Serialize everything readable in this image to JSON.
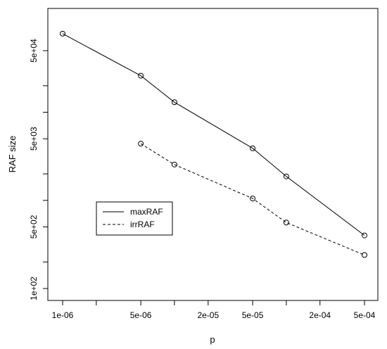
{
  "chart_data": {
    "type": "line",
    "xlabel": "p",
    "ylabel": "RAF size",
    "x_scale": "log",
    "y_scale": "log",
    "xlim": [
      1e-06,
      0.0005
    ],
    "ylim": [
      100,
      80000
    ],
    "x_ticks": [
      {
        "value": 1e-06,
        "label": "1e-06"
      },
      {
        "value": 2e-06,
        "label": ""
      },
      {
        "value": 5e-06,
        "label": "5e-06"
      },
      {
        "value": 1e-05,
        "label": ""
      },
      {
        "value": 2e-05,
        "label": "2e-05"
      },
      {
        "value": 5e-05,
        "label": "5e-05"
      },
      {
        "value": 0.0001,
        "label": ""
      },
      {
        "value": 0.0002,
        "label": "2e-04"
      },
      {
        "value": 0.0005,
        "label": "5e-04"
      }
    ],
    "y_ticks": [
      {
        "value": 100,
        "label": "1e+02"
      },
      {
        "value": 200,
        "label": ""
      },
      {
        "value": 500,
        "label": "5e+02"
      },
      {
        "value": 1000,
        "label": ""
      },
      {
        "value": 2000,
        "label": ""
      },
      {
        "value": 5000,
        "label": "5e+03"
      },
      {
        "value": 10000,
        "label": ""
      },
      {
        "value": 20000,
        "label": ""
      },
      {
        "value": 50000,
        "label": "5e+04"
      }
    ],
    "series": [
      {
        "name": "maxRAF",
        "line_style": "solid",
        "marker": "open-circle",
        "x": [
          1e-06,
          5e-06,
          1e-05,
          5e-05,
          0.0001,
          0.0005
        ],
        "y": [
          78000,
          26000,
          13000,
          3900,
          1870,
          400
        ]
      },
      {
        "name": "irrRAF",
        "line_style": "dashed",
        "marker": "open-circle",
        "x": [
          5e-06,
          1e-05,
          5e-05,
          0.0001,
          0.0005
        ],
        "y": [
          4400,
          2550,
          1050,
          560,
          240
        ]
      }
    ],
    "legend_position": "left-center"
  }
}
